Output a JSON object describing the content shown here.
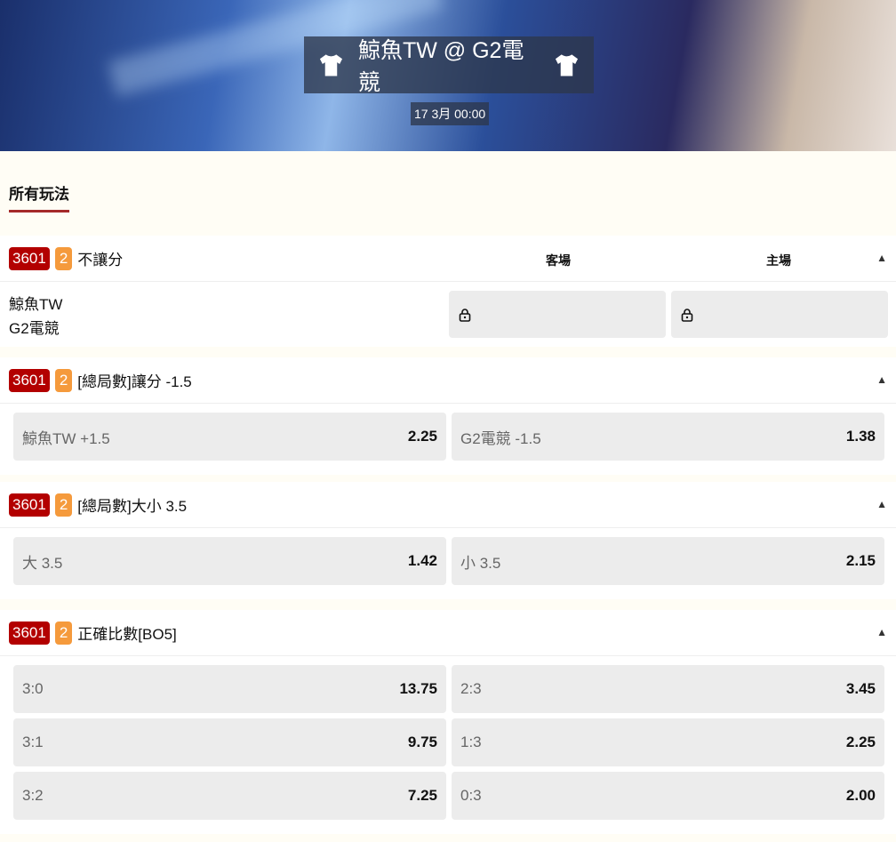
{
  "header": {
    "title": "鯨魚TW @ G2電競",
    "date": "17 3月 00:00",
    "icons": [
      "tshirt-icon",
      "tshirt-icon"
    ]
  },
  "tabs": [
    {
      "label": "所有玩法",
      "active": true
    }
  ],
  "colors": {
    "code_badge": "#b30000",
    "count_badge": "#f59a3c",
    "tab_underline": "#a52a2a"
  },
  "markets": [
    {
      "code": "3601",
      "count": "2",
      "title": "不讓分",
      "col_away": "客場",
      "col_home": "主場",
      "team1": "鯨魚TW",
      "team2": "G2電競",
      "locked": true
    },
    {
      "code": "3601",
      "count": "2",
      "title": "[總局數]讓分 -1.5",
      "options": [
        {
          "label": "鯨魚TW +1.5",
          "odds": "2.25"
        },
        {
          "label": "G2電競 -1.5",
          "odds": "1.38"
        }
      ]
    },
    {
      "code": "3601",
      "count": "2",
      "title": "[總局數]大小 3.5",
      "options": [
        {
          "label": "大 3.5",
          "odds": "1.42"
        },
        {
          "label": "小 3.5",
          "odds": "2.15"
        }
      ]
    },
    {
      "code": "3601",
      "count": "2",
      "title": "正確比數[BO5]",
      "options": [
        {
          "label": "3:0",
          "odds": "13.75"
        },
        {
          "label": "2:3",
          "odds": "3.45"
        },
        {
          "label": "3:1",
          "odds": "9.75"
        },
        {
          "label": "1:3",
          "odds": "2.25"
        },
        {
          "label": "3:2",
          "odds": "7.25"
        },
        {
          "label": "0:3",
          "odds": "2.00"
        }
      ]
    }
  ]
}
